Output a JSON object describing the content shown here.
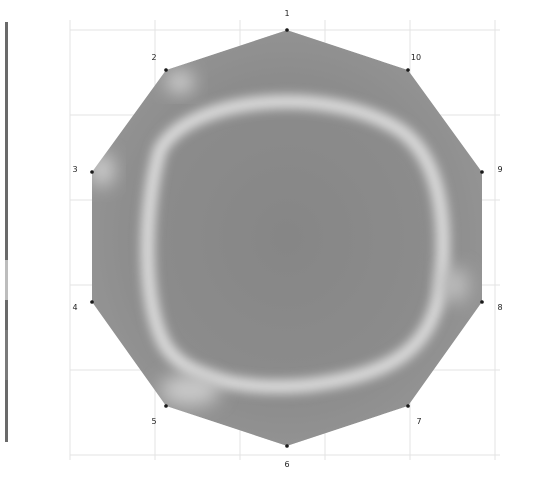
{
  "points": [
    {
      "label": "1"
    },
    {
      "label": "2"
    },
    {
      "label": "3"
    },
    {
      "label": "4"
    },
    {
      "label": "5"
    },
    {
      "label": "6"
    },
    {
      "label": "7"
    },
    {
      "label": "8"
    },
    {
      "label": "9"
    },
    {
      "label": "10"
    }
  ],
  "colors": {
    "field": "#8a8a8a",
    "ring": "#dcdcdc",
    "grid": "#e6e6e6",
    "legend_bar": "#6e6e6e",
    "marker": "#1a1a1a"
  }
}
